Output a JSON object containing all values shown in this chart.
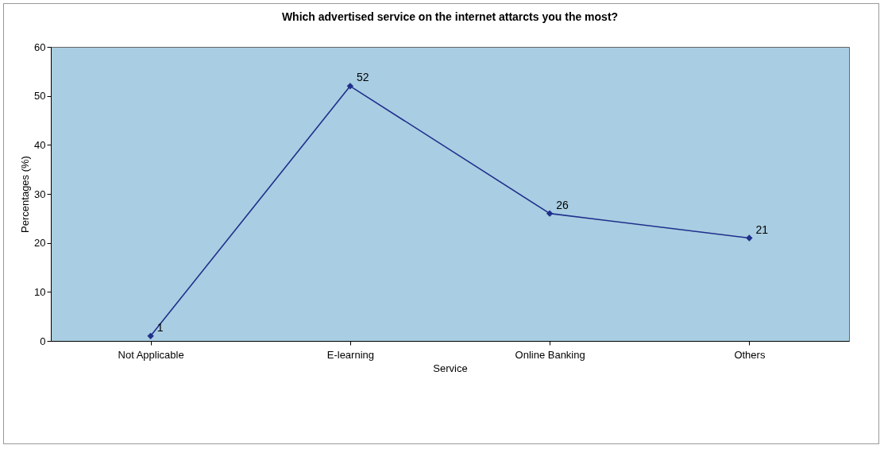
{
  "chart_data": {
    "type": "line",
    "title": "Which advertised service on the internet attarcts you the most?",
    "xlabel": "Service",
    "ylabel": "Percentages (%)",
    "categories": [
      "Not Applicable",
      "E-learning",
      "Online Banking",
      "Others"
    ],
    "values": [
      1,
      52,
      26,
      21
    ],
    "color": "#1f2f8c",
    "marker": "diamond",
    "data_labels": true,
    "grid": false,
    "ylim": [
      0,
      60
    ],
    "yticks": [
      0,
      10,
      20,
      30,
      40,
      50,
      60
    ]
  }
}
